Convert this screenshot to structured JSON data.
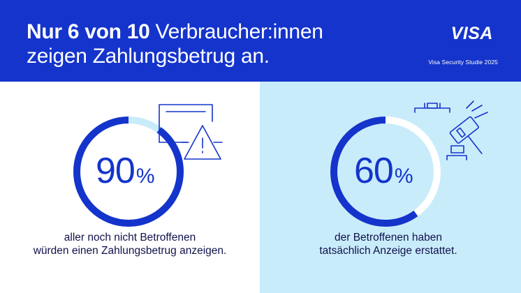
{
  "header": {
    "headline_bold": "Nur 6 von 10",
    "headline_rest": "Verbraucher:innen",
    "headline_line2": "zeigen Zahlungsbetrug an.",
    "logo_text": "VISA",
    "study": "Visa Security Studie 2025"
  },
  "stats": [
    {
      "value": 90,
      "value_text": "90",
      "unit": "%",
      "caption_line1": "aller noch nicht Betroffenen",
      "caption_line2": "würden einen Zahlungsbetrug anzeigen.",
      "icon": "document-warning-icon"
    },
    {
      "value": 60,
      "value_text": "60",
      "unit": "%",
      "caption_line1": "der Betroffenen haben",
      "caption_line2": "tatsächlich Anzeige erstattet.",
      "icon": "gavel-icon"
    }
  ],
  "colors": {
    "brand_blue": "#1434cb",
    "light_blue": "#c9ecfb",
    "dark_text": "#10124a",
    "white": "#ffffff"
  }
}
